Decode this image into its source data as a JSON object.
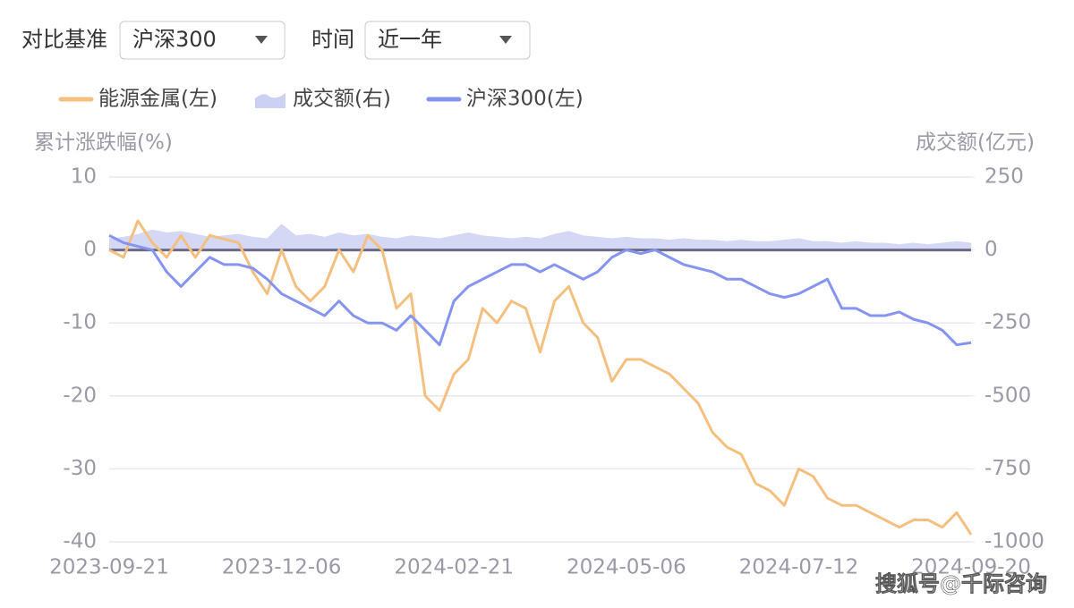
{
  "controls": {
    "benchmark_label": "对比基准",
    "benchmark_value": "沪深300",
    "period_label": "时间",
    "period_value": "近一年"
  },
  "watermark": "搜狐号@千际咨询",
  "chart_data": {
    "type": "line",
    "y_label": "累计涨跌幅(%)",
    "y2_label": "成交额(亿元)",
    "categories": [
      "2023-09-21",
      null,
      null,
      null,
      null,
      null,
      null,
      null,
      null,
      null,
      null,
      null,
      "2023-12-06",
      null,
      null,
      null,
      null,
      null,
      null,
      null,
      null,
      null,
      null,
      null,
      "2024-02-21",
      null,
      null,
      null,
      null,
      null,
      null,
      null,
      null,
      null,
      null,
      null,
      "2024-05-06",
      null,
      null,
      null,
      null,
      null,
      null,
      null,
      null,
      null,
      null,
      null,
      "2024-07-12",
      null,
      null,
      null,
      null,
      null,
      null,
      null,
      null,
      null,
      null,
      null,
      "2024-09-20"
    ],
    "ylim": [
      -40,
      10
    ],
    "yticks": [
      -40,
      -30,
      -20,
      -10,
      0,
      10
    ],
    "y2lim": [
      -1000,
      250
    ],
    "y2ticks": [
      -1000,
      -750,
      -500,
      -250,
      0,
      250
    ],
    "grid": true,
    "series": [
      {
        "name": "能源金属(左)",
        "color": "#f5c07f",
        "style": "line",
        "axis": "y",
        "values": [
          0,
          -1,
          4,
          1,
          -1,
          2,
          -1,
          2,
          1.5,
          1,
          -3,
          -6,
          0,
          -5,
          -7,
          -5,
          0,
          -3,
          2,
          0,
          -8,
          -6,
          -20,
          -22,
          -17,
          -15,
          -8,
          -10,
          -7,
          -8,
          -14,
          -7,
          -5,
          -10,
          -12,
          -18,
          -15,
          -15,
          -16,
          -17,
          -19,
          -21,
          -25,
          -27,
          -28,
          -32,
          -33,
          -35,
          -30,
          -31,
          -34,
          -35,
          -35,
          -36,
          -37,
          -38,
          -37,
          -37,
          -38,
          -36,
          -39
        ]
      },
      {
        "name": "成交额(右)",
        "color": "#ccd1f3",
        "style": "area",
        "axis": "y2",
        "values": [
          40,
          45,
          55,
          70,
          60,
          65,
          55,
          45,
          50,
          55,
          45,
          40,
          90,
          50,
          55,
          45,
          60,
          50,
          55,
          45,
          40,
          50,
          45,
          40,
          50,
          60,
          50,
          45,
          40,
          45,
          40,
          55,
          65,
          50,
          45,
          40,
          45,
          40,
          40,
          35,
          40,
          35,
          35,
          30,
          35,
          30,
          30,
          35,
          40,
          30,
          30,
          25,
          30,
          25,
          25,
          20,
          25,
          20,
          25,
          30,
          25
        ]
      },
      {
        "name": "沪深300(左)",
        "color": "#8594f0",
        "style": "line",
        "axis": "y",
        "values": [
          2,
          1,
          0.5,
          0,
          -3,
          -5,
          -3,
          -1,
          -2,
          -2,
          -2.5,
          -4,
          -6,
          -7,
          -8,
          -9,
          -7,
          -9,
          -10,
          -10,
          -11,
          -9,
          -11,
          -13,
          -7,
          -5,
          -4,
          -3,
          -2,
          -2,
          -3,
          -2,
          -3,
          -4,
          -3,
          -1,
          0,
          -0.5,
          0,
          -1,
          -2,
          -2.5,
          -3,
          -4,
          -4,
          -5,
          -6,
          -6.5,
          -6,
          -5,
          -4,
          -8,
          -8,
          -9,
          -9,
          -8.5,
          -9.5,
          -10,
          -11,
          -13,
          -12.7
        ]
      }
    ]
  }
}
